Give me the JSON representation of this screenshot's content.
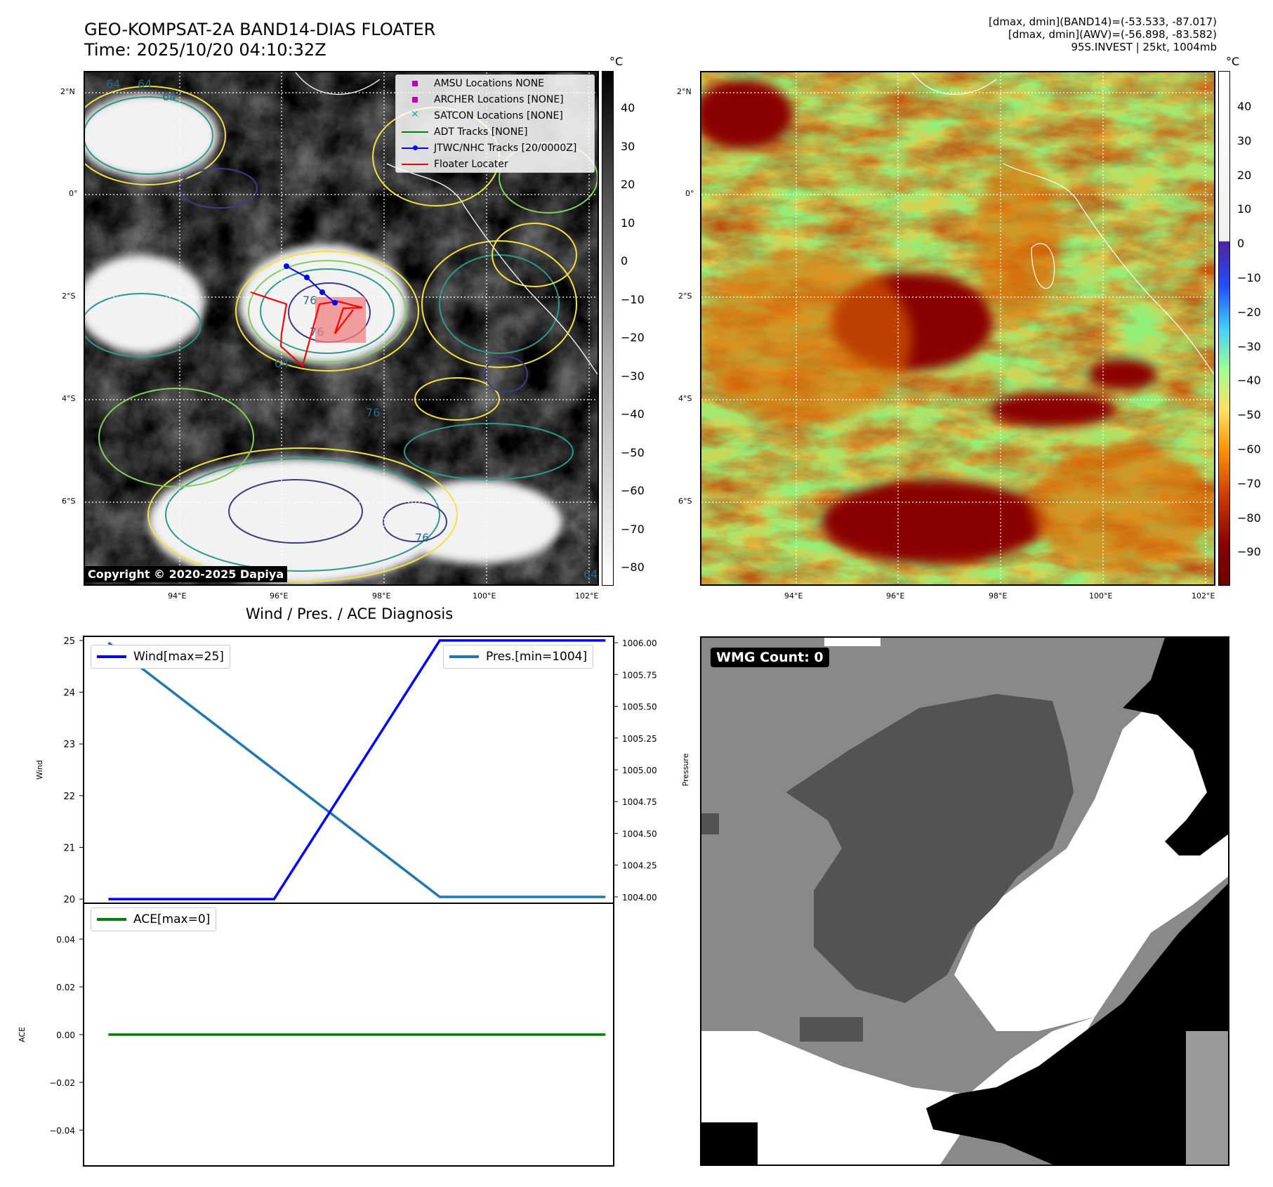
{
  "header": {
    "title_line1": "GEO-KOMPSAT-2A BAND14-DIAS FLOATER",
    "title_line2": "Time: 2025/10/20 04:10:32Z",
    "info_line1": "[dmax, dmin](BAND14)=(-53.533, -87.017)",
    "info_line2": "[dmax, dmin](AWV)=(-56.898, -83.582)",
    "info_line3": "95S.INVEST | 25kt, 1004mb"
  },
  "maps": {
    "lat_labels": [
      "2°N",
      "0°",
      "2°S",
      "4°S",
      "6°S"
    ],
    "lon_labels": [
      "94°E",
      "96°E",
      "98°E",
      "100°E",
      "102°E"
    ],
    "contour_labels": [
      "64",
      "64",
      "76",
      "76",
      "64",
      "76",
      "64",
      "76",
      "64"
    ]
  },
  "colorbars": {
    "unit": "°C",
    "left_ticks": [
      "40",
      "30",
      "20",
      "10",
      "0",
      "−10",
      "−20",
      "−30",
      "−40",
      "−50",
      "−60",
      "−70",
      "−80"
    ],
    "right_ticks": [
      "40",
      "30",
      "20",
      "10",
      "0",
      "−10",
      "−20",
      "−30",
      "−40",
      "−50",
      "−60",
      "−70",
      "−80",
      "−90"
    ]
  },
  "legend": {
    "items": [
      {
        "label": "AMSU Locations NONE",
        "color": "#c000c0",
        "kind": "square"
      },
      {
        "label": "ARCHER Locations [NONE]",
        "color": "#c000c0",
        "kind": "square"
      },
      {
        "label": "SATCON Locations [NONE]",
        "color": "#20b0b0",
        "kind": "x"
      },
      {
        "label": "ADT Tracks [NONE]",
        "color": "#008000",
        "kind": "line"
      },
      {
        "label": "JTWC/NHC Tracks [20/0000Z]",
        "color": "#0000ff",
        "kind": "line-dot"
      },
      {
        "label": "Floater Locater",
        "color": "#ff0000",
        "kind": "line"
      }
    ]
  },
  "copyright": "Copyright © 2020-2025 Dapiya",
  "diagnosis": {
    "title": "Wind / Pres. / ACE Diagnosis",
    "wind_axis_label": "Wind",
    "pressure_axis_label": "Pressure",
    "ace_axis_label": "ACE",
    "wind_legend": "Wind[max=25]",
    "pres_legend": "Pres.[min=1004]",
    "ace_legend": "ACE[max=0]"
  },
  "wmg": {
    "label": "WMG Count: 0"
  },
  "chart_data": [
    {
      "type": "line",
      "title": "Wind / Pres. / ACE Diagnosis",
      "x": [
        0,
        1,
        2,
        3
      ],
      "series": [
        {
          "name": "Wind[max=25]",
          "axis": "left",
          "color": "#0000ff",
          "values": [
            20,
            20,
            25,
            25
          ]
        },
        {
          "name": "Pres.[min=1004]",
          "axis": "right",
          "color": "#1f77b4",
          "values": [
            1006,
            1005,
            1004,
            1004
          ]
        }
      ],
      "ylabel": "Wind",
      "ylim": [
        19.92,
        25.08
      ],
      "y_ticks": [
        20,
        21,
        22,
        23,
        24,
        25
      ],
      "y2label": "Pressure",
      "y2lim": [
        1003.95,
        1006.05
      ],
      "y2_ticks": [
        "1004.00",
        "1004.25",
        "1004.50",
        "1004.75",
        "1005.00",
        "1005.25",
        "1005.50",
        "1005.75",
        "1006.00"
      ]
    },
    {
      "type": "line",
      "x": [
        0,
        1,
        2,
        3
      ],
      "series": [
        {
          "name": "ACE[max=0]",
          "color": "#008000",
          "values": [
            0,
            0,
            0,
            0
          ]
        }
      ],
      "ylabel": "ACE",
      "ylim": [
        -0.055,
        0.055
      ],
      "y_ticks": [
        "0.04",
        "0.02",
        "0.00",
        "−0.02",
        "−0.04"
      ]
    }
  ]
}
